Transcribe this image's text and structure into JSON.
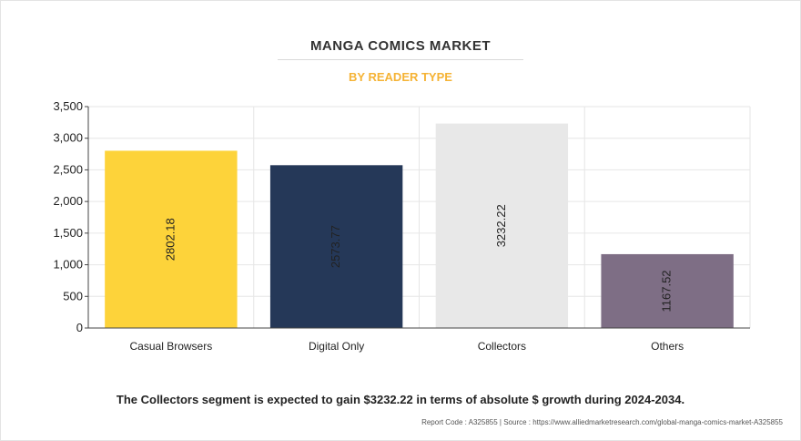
{
  "chart_data": {
    "type": "bar",
    "title": "MANGA COMICS MARKET",
    "subtitle": "BY READER TYPE",
    "categories": [
      "Casual Browsers",
      "Digital Only",
      "Collectors",
      "Others"
    ],
    "values": [
      2802.18,
      2573.77,
      3232.22,
      1167.52
    ],
    "value_labels": [
      "2802.18",
      "2573.77",
      "3232.22",
      "1167.52"
    ],
    "colors": [
      "#fdd33a",
      "#253858",
      "#e8e8e8",
      "#7e6e85"
    ],
    "ylim": [
      0,
      3500
    ],
    "yticks": [
      0,
      500,
      1000,
      1500,
      2000,
      2500,
      3000,
      3500
    ],
    "ytick_labels": [
      "0",
      "500",
      "1,000",
      "1,500",
      "2,000",
      "2,500",
      "3,000",
      "3,500"
    ],
    "xlabel": "",
    "ylabel": "",
    "grid": true,
    "legend": "none"
  },
  "footnote": "The Collectors segment is expected to gain $3232.22 in terms of absolute $ growth during 2024-2034.",
  "source": "Report Code : A325855  |  Source : https://www.alliedmarketresearch.com/global-manga-comics-market-A325855"
}
